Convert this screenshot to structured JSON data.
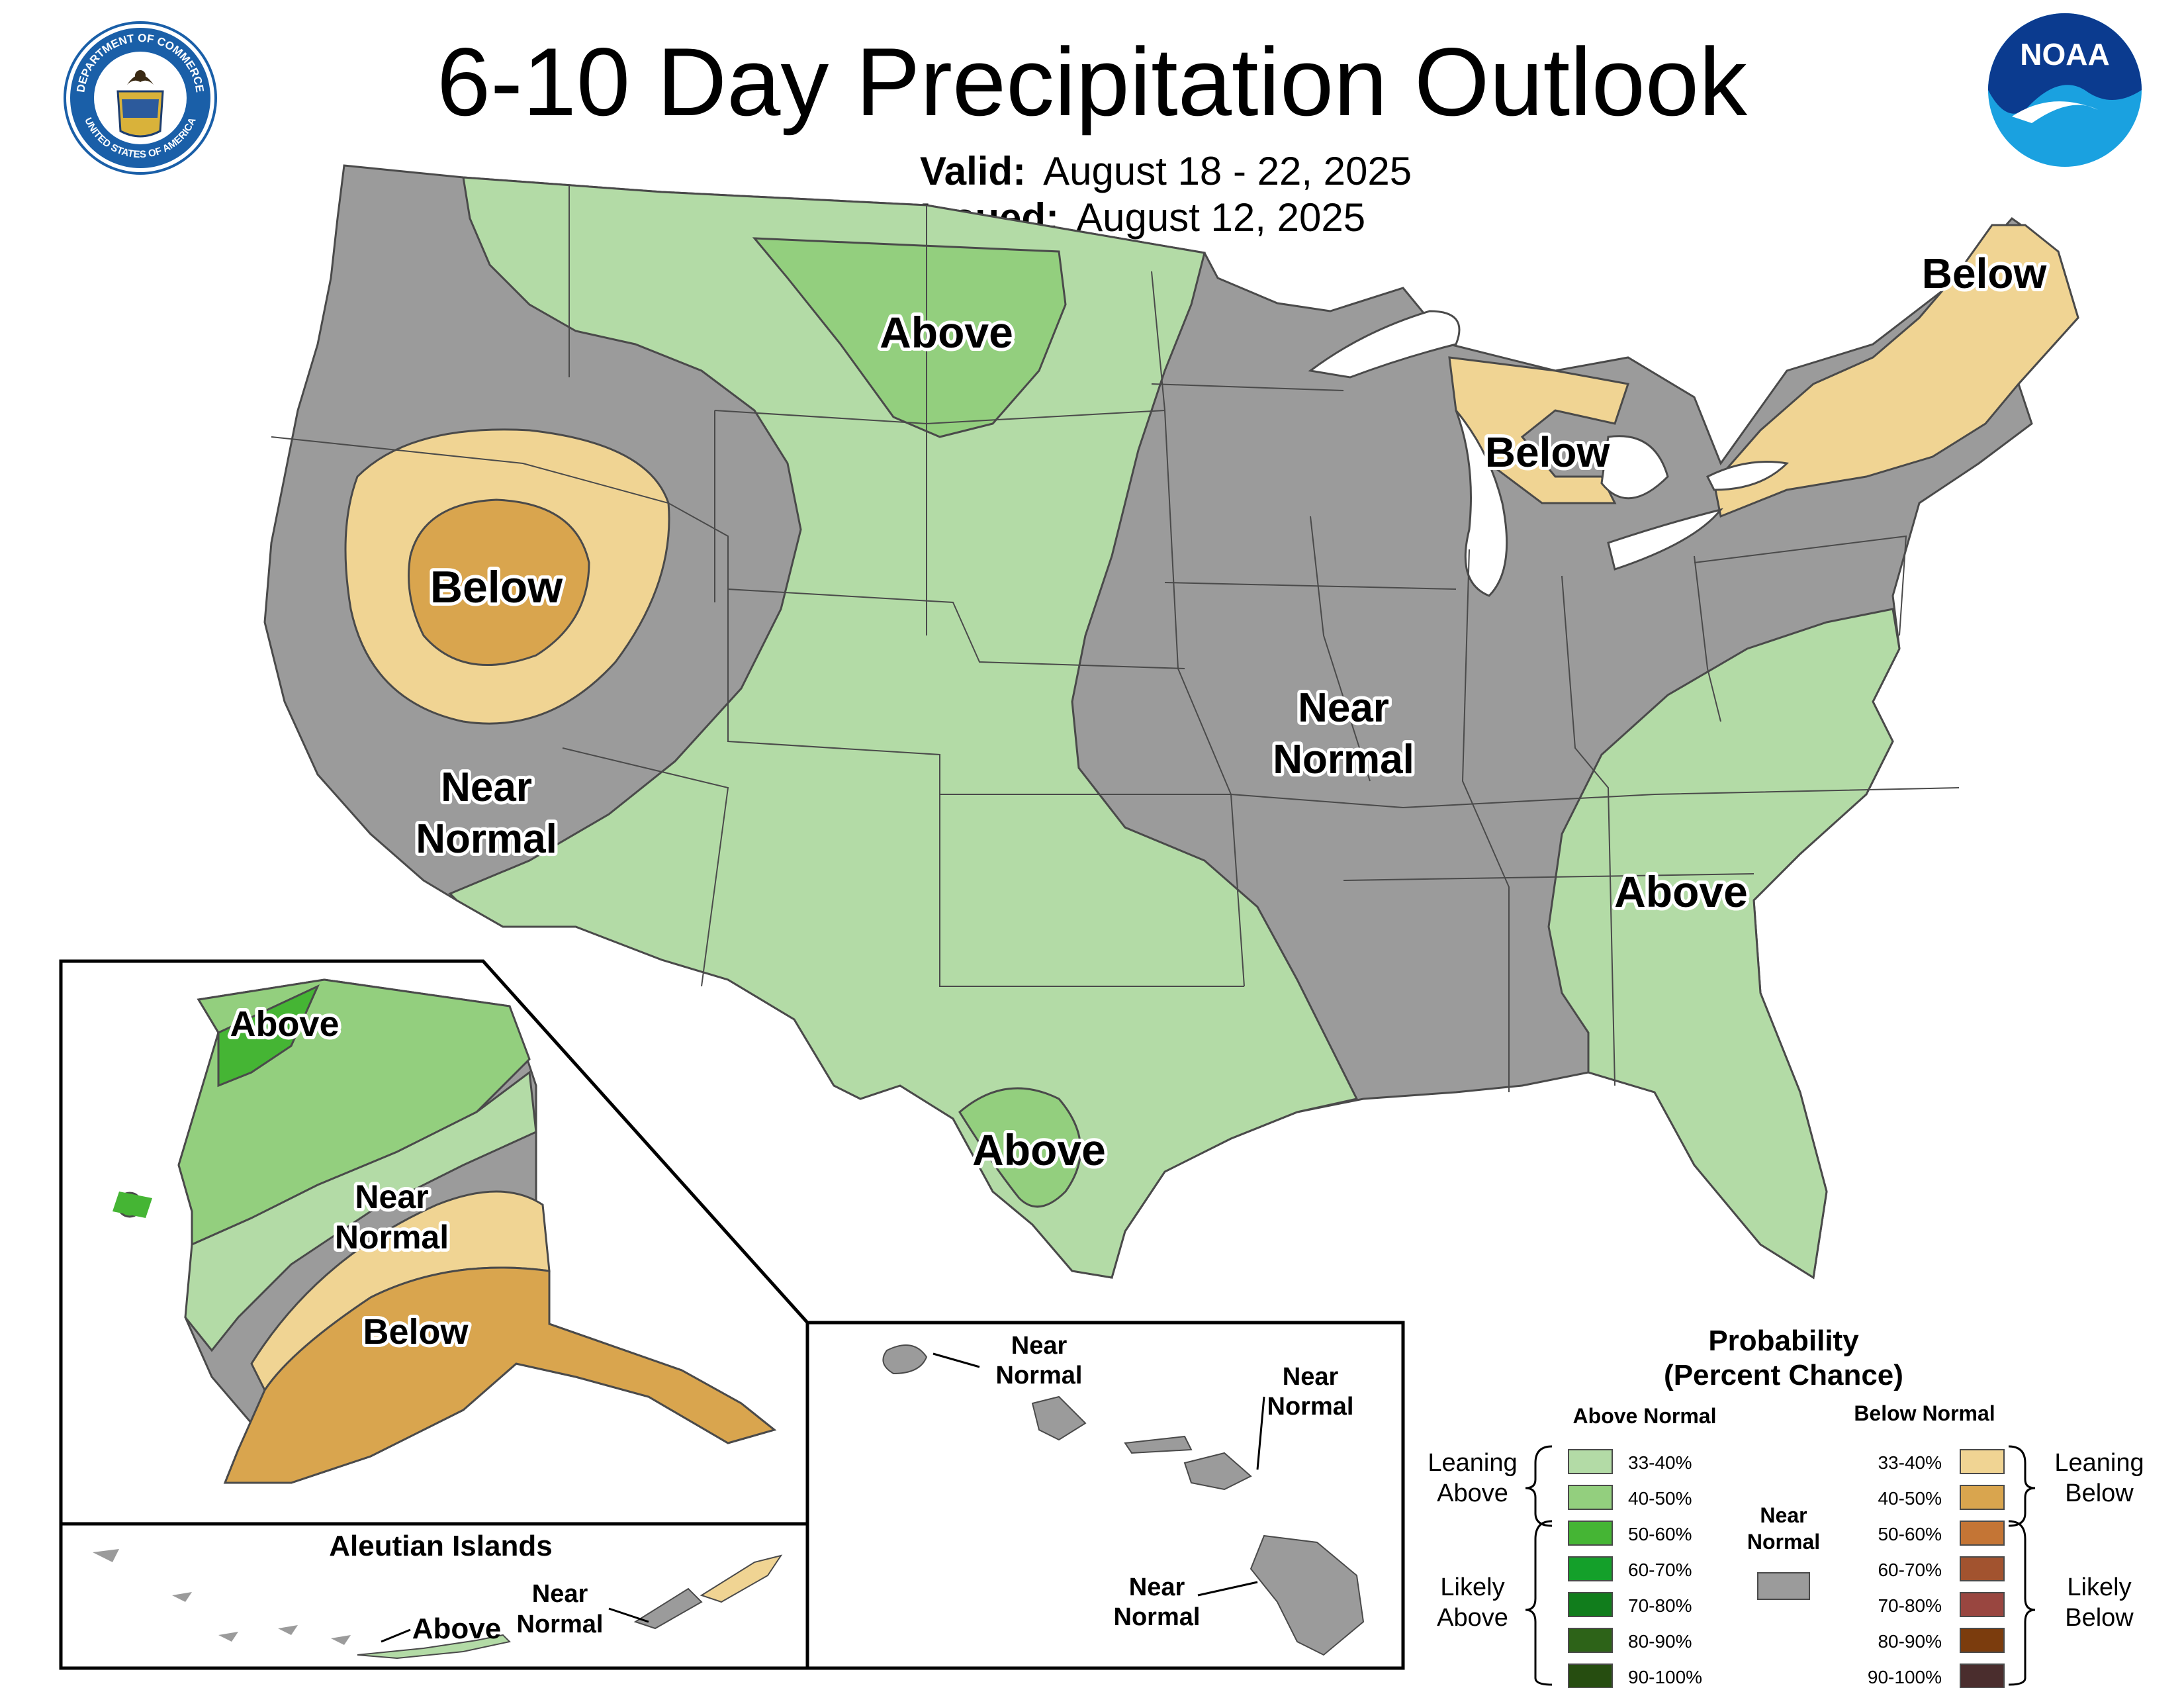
{
  "header": {
    "title": "6-10 Day Precipitation Outlook",
    "valid_label": "Valid:",
    "valid_value": "August 18 - 22, 2025",
    "issued_label": "Issued:",
    "issued_value": "August 12, 2025"
  },
  "logos": {
    "commerce_seal": {
      "top_text": "DEPARTMENT OF COMMERCE",
      "bottom_text": "UNITED STATES OF AMERICA"
    },
    "noaa": {
      "text": "NOAA"
    }
  },
  "conus_labels": {
    "above_north": "Above",
    "below_great_basin": "Below",
    "near_normal_west_1": "Near",
    "near_normal_west_2": "Normal",
    "near_normal_central_1": "Near",
    "near_normal_central_2": "Normal",
    "above_southeast": "Above",
    "above_texas": "Above",
    "below_michigan": "Below",
    "below_northeast": "Below"
  },
  "alaska_labels": {
    "above": "Above",
    "near_normal_1": "Near",
    "near_normal_2": "Normal",
    "below": "Below"
  },
  "aleutian": {
    "title": "Aleutian Islands",
    "above": "Above",
    "near_normal_1": "Near",
    "near_normal_2": "Normal"
  },
  "hawaii_labels": {
    "kauai_1": "Near",
    "kauai_2": "Normal",
    "maui_1": "Near",
    "maui_2": "Normal",
    "big_island_1": "Near",
    "big_island_2": "Normal"
  },
  "legend": {
    "title_1": "Probability",
    "title_2": "(Percent Chance)",
    "above_header": "Above Normal",
    "below_header": "Below Normal",
    "near_normal_1": "Near",
    "near_normal_2": "Normal",
    "leaning_above_1": "Leaning",
    "leaning_above_2": "Above",
    "likely_above_1": "Likely",
    "likely_above_2": "Above",
    "leaning_below_1": "Leaning",
    "leaning_below_2": "Below",
    "likely_below_1": "Likely",
    "likely_below_2": "Below",
    "above_items": [
      {
        "label": "33-40%",
        "color": "#b3dba6"
      },
      {
        "label": "40-50%",
        "color": "#93cf7e"
      },
      {
        "label": "50-60%",
        "color": "#45b534"
      },
      {
        "label": "60-70%",
        "color": "#14a02a"
      },
      {
        "label": "70-80%",
        "color": "#117d1c"
      },
      {
        "label": "80-90%",
        "color": "#2d6318"
      },
      {
        "label": "90-100%",
        "color": "#264d10"
      }
    ],
    "below_items": [
      {
        "label": "33-40%",
        "color": "#f0d493"
      },
      {
        "label": "40-50%",
        "color": "#d9a54e"
      },
      {
        "label": "50-60%",
        "color": "#c47535"
      },
      {
        "label": "60-70%",
        "color": "#a2532f"
      },
      {
        "label": "70-80%",
        "color": "#994640"
      },
      {
        "label": "80-90%",
        "color": "#7b3c0d"
      },
      {
        "label": "90-100%",
        "color": "#4a2d2d"
      }
    ],
    "near_normal_color": "#9b9b9b"
  },
  "colors": {
    "near_normal": "#9b9b9b",
    "above_33_40": "#b3dba6",
    "above_40_50": "#93cf7e",
    "above_50_60": "#45b534",
    "below_33_40": "#f0d493",
    "below_40_50": "#d9a54e"
  }
}
